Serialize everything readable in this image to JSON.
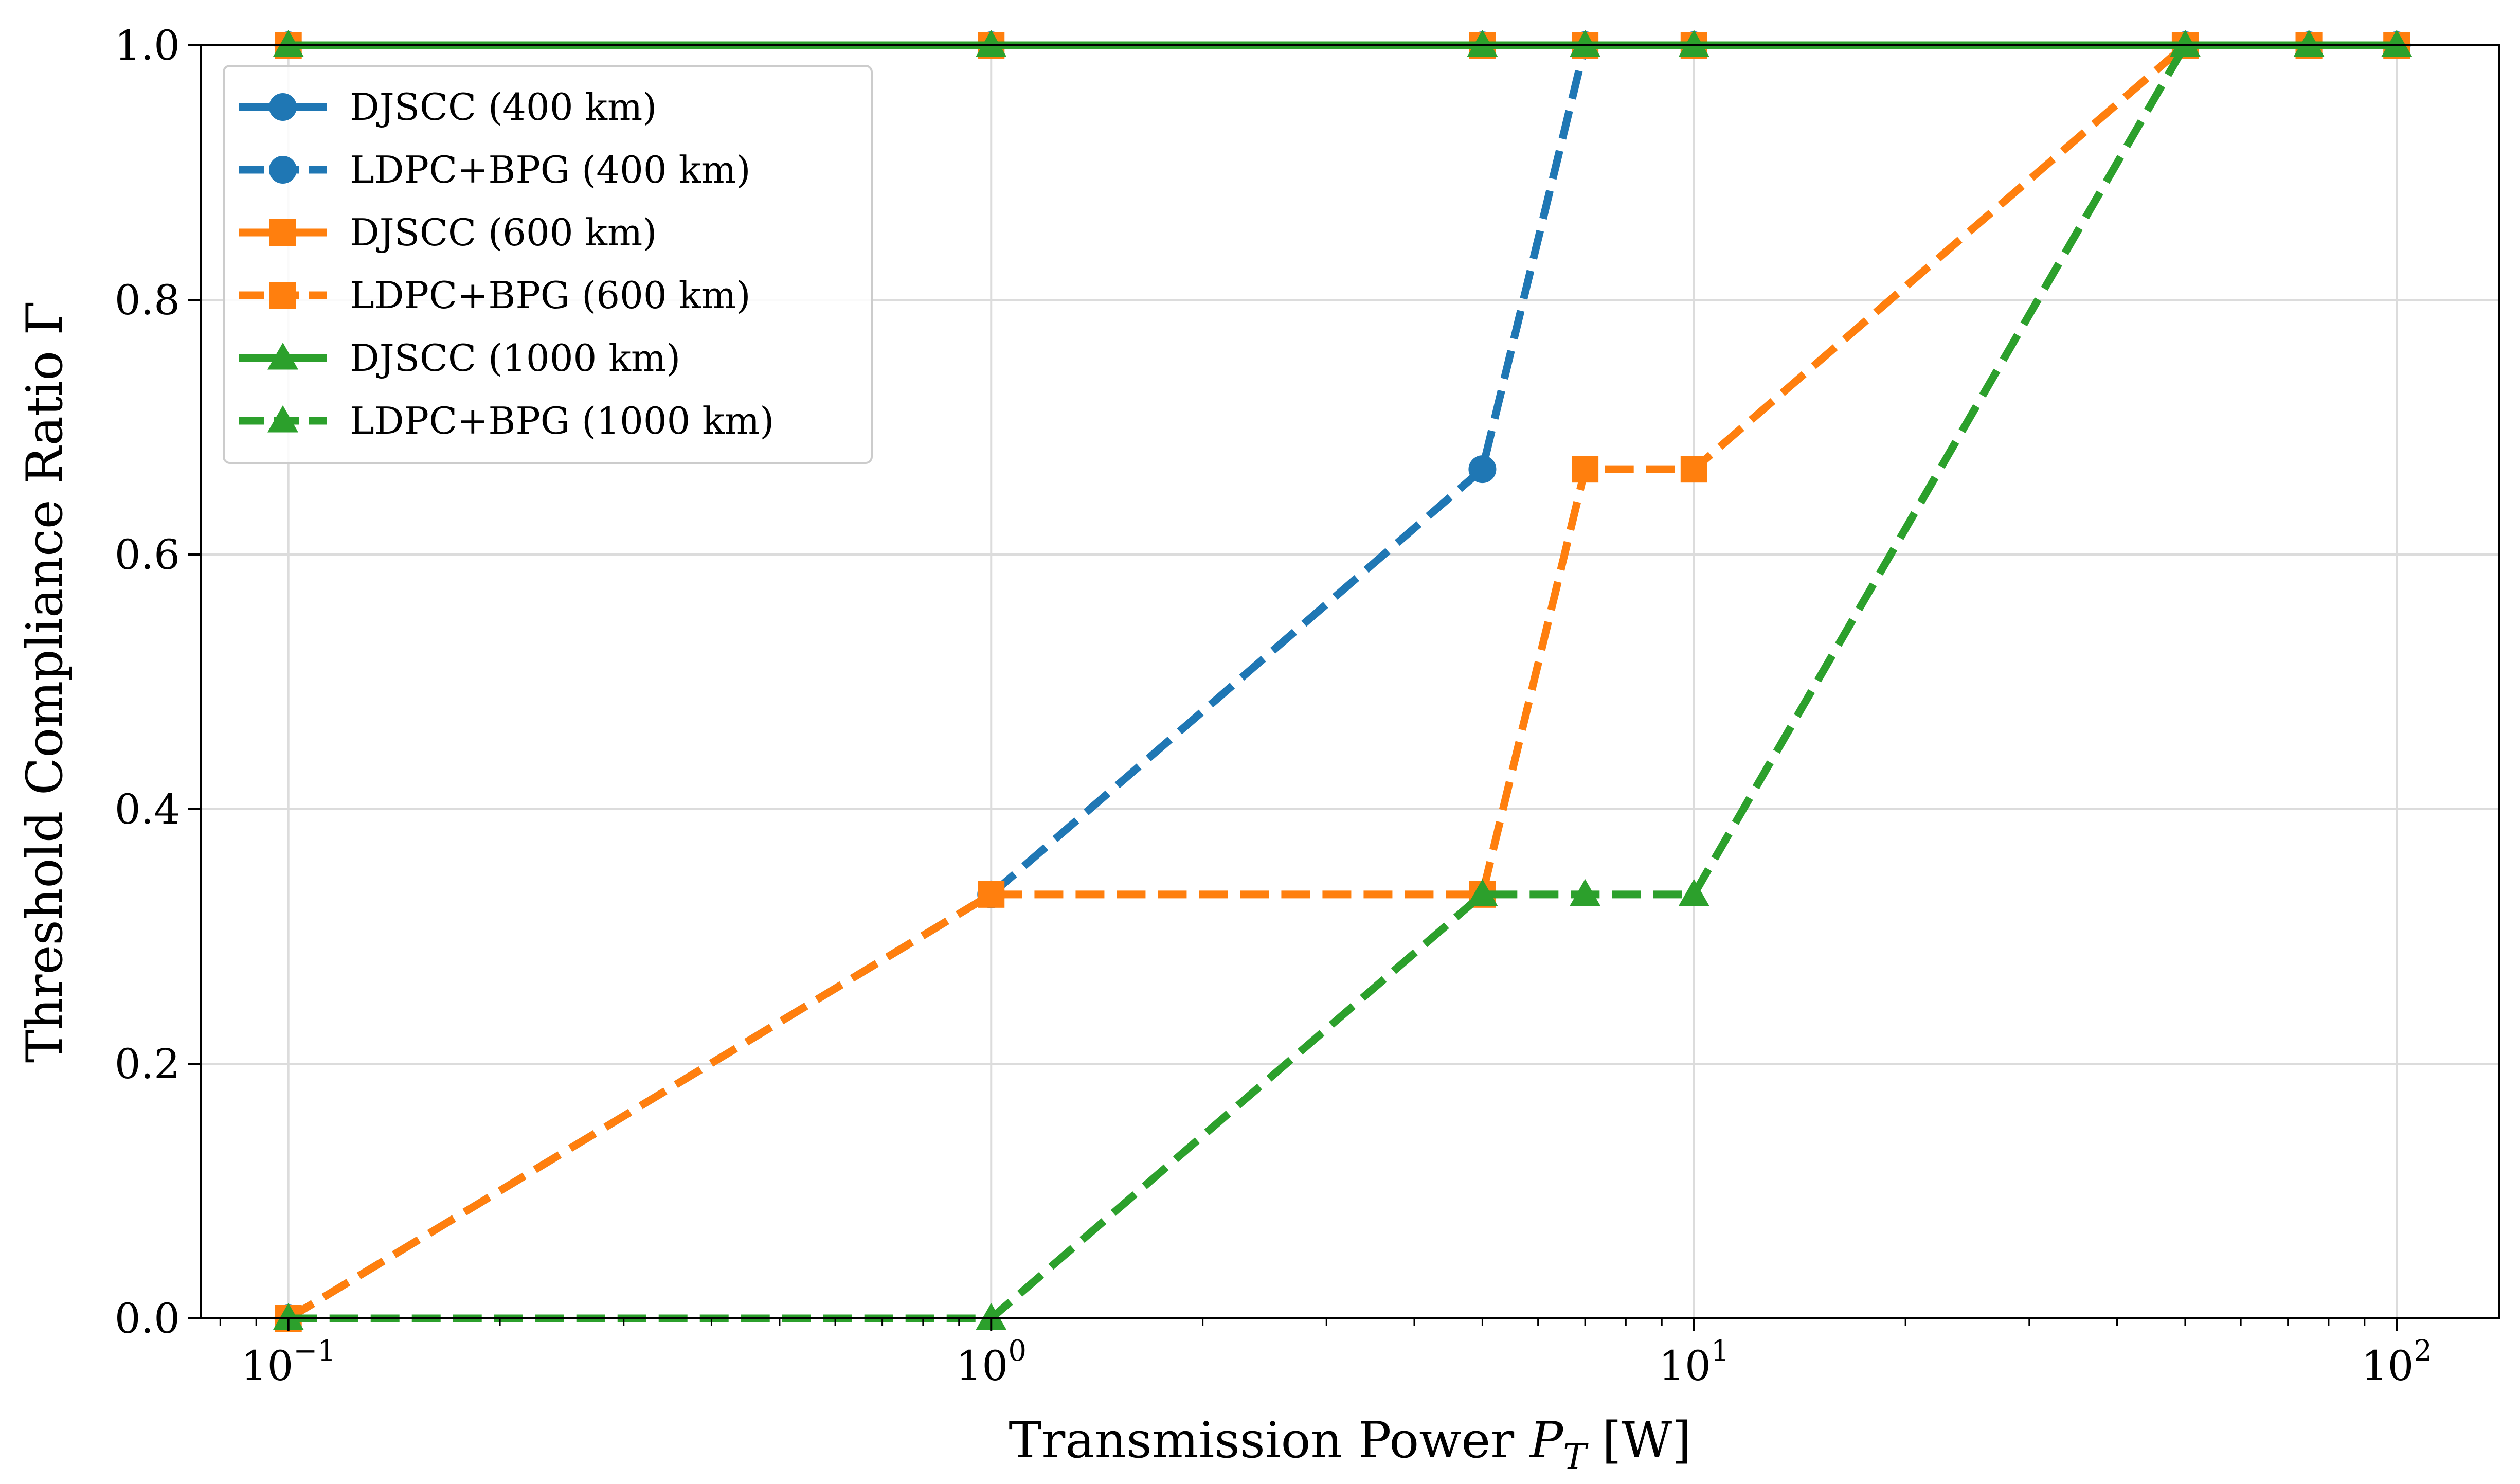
{
  "chart_data": {
    "type": "line",
    "xlabel": "Transmission Power P_T [W]",
    "ylabel": "Threshold Compliance Ratio Γ",
    "xscale": "log",
    "xlim": [
      0.075,
      140
    ],
    "ylim": [
      0,
      1.0
    ],
    "x_ticks": [
      {
        "value": 0.1,
        "base": "10",
        "exp": "−1"
      },
      {
        "value": 1,
        "base": "10",
        "exp": "0"
      },
      {
        "value": 10,
        "base": "10",
        "exp": "1"
      },
      {
        "value": 100,
        "base": "10",
        "exp": "2"
      }
    ],
    "y_ticks": [
      "0.0",
      "0.2",
      "0.4",
      "0.6",
      "0.8",
      "1.0"
    ],
    "grid": true,
    "legend_position": "top-left",
    "series": [
      {
        "name": "DJSCC (400 km)",
        "color": "#1f77b4",
        "style": "solid",
        "marker": "circle",
        "x": [
          0.1,
          1,
          5,
          7,
          10,
          50,
          75,
          100
        ],
        "y": [
          1,
          1,
          1,
          1,
          1,
          1,
          1,
          1
        ]
      },
      {
        "name": "LDPC+BPG (400 km)",
        "color": "#1f77b4",
        "style": "dashed",
        "marker": "circle",
        "x": [
          0.1,
          1,
          5,
          7,
          10,
          50,
          75,
          100
        ],
        "y": [
          0,
          0.333,
          0.667,
          1,
          1,
          1,
          1,
          1
        ]
      },
      {
        "name": "DJSCC (600 km)",
        "color": "#ff7f0e",
        "style": "solid",
        "marker": "square",
        "x": [
          0.1,
          1,
          5,
          7,
          10,
          50,
          75,
          100
        ],
        "y": [
          1,
          1,
          1,
          1,
          1,
          1,
          1,
          1
        ]
      },
      {
        "name": "LDPC+BPG (600 km)",
        "color": "#ff7f0e",
        "style": "dashed",
        "marker": "square",
        "x": [
          0.1,
          1,
          5,
          7,
          10,
          50,
          75,
          100
        ],
        "y": [
          0,
          0.333,
          0.333,
          0.667,
          0.667,
          1,
          1,
          1
        ]
      },
      {
        "name": "DJSCC (1000 km)",
        "color": "#2ca02c",
        "style": "solid",
        "marker": "triangle",
        "x": [
          0.1,
          1,
          5,
          7,
          10,
          50,
          75,
          100
        ],
        "y": [
          1,
          1,
          1,
          1,
          1,
          1,
          1,
          1
        ]
      },
      {
        "name": "LDPC+BPG (1000 km)",
        "color": "#2ca02c",
        "style": "dashed",
        "marker": "triangle",
        "x": [
          0.1,
          1,
          5,
          7,
          10,
          50,
          75,
          100
        ],
        "y": [
          0,
          0,
          0.333,
          0.333,
          0.333,
          1,
          1,
          1
        ]
      }
    ]
  }
}
